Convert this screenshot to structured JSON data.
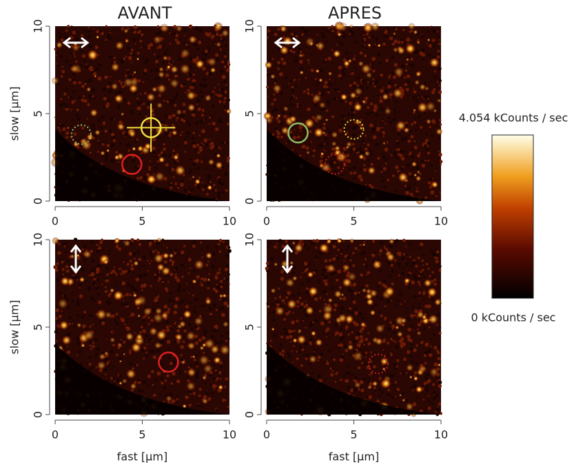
{
  "columns": [
    "AVANT",
    "APRES"
  ],
  "axes": {
    "ticks": [
      0,
      5,
      10
    ],
    "xlabel": "fast [µm]",
    "ylabel": "slow [µm]"
  },
  "colorbar": {
    "max_label": "4.054 kCounts / sec",
    "min_label": "0 kCounts / sec"
  }
}
